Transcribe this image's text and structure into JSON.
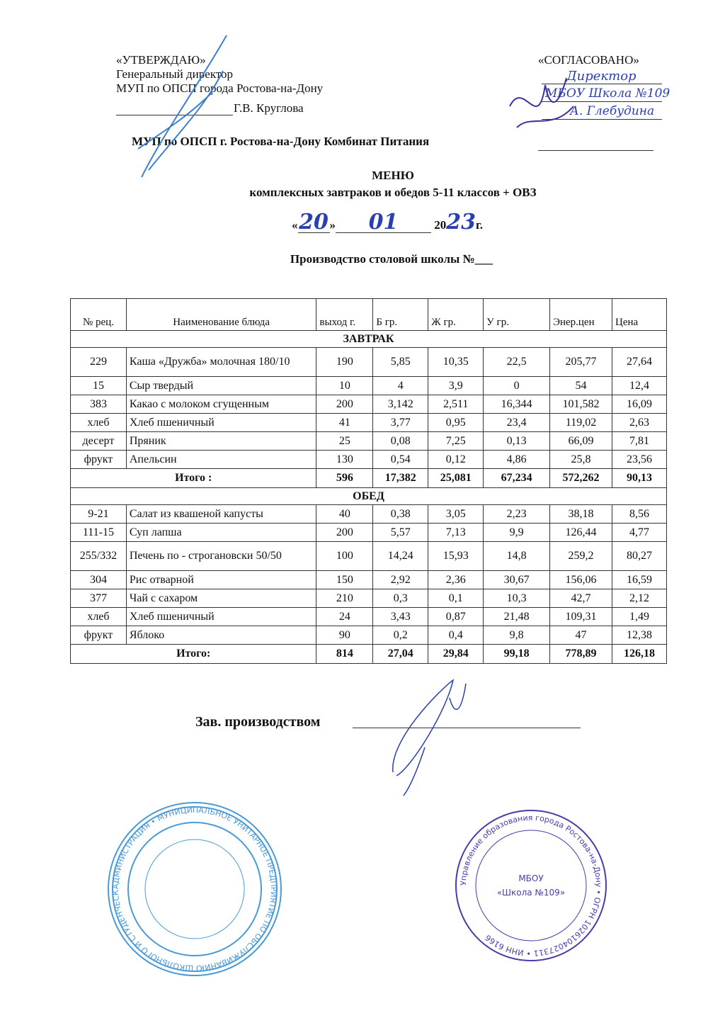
{
  "approve": {
    "title": "«УТВЕРЖДАЮ»",
    "line1": "Генеральный директор",
    "line2": "МУП по ОПСП города Ростова-на-Дону",
    "signer": "Г.В. Круглова"
  },
  "agree": {
    "title": "«СОГЛАСОВАНО»",
    "hand1": "Директор",
    "hand2": "МБОУ Школа №109",
    "hand3": "А. Глебудина"
  },
  "organization": "МУП по ОПСП г. Ростова-на-Дону Комбинат Питания",
  "stamps": {
    "left": {
      "ring": "АДМИНИСТРАЦИЯ • МУНИЦИПАЛЬНОЕ УНИТАРНОЕ ПРЕДПРИЯТИЕ ПО ОБСЛУЖИВАНИЮ ШКОЛЬНОГО И СТУДЕНЧЕСКОГО ПИТАНИЯ • ОГРН 1026103 • РОСТОВА-НА-ДОНУ",
      "color": "#4a9ad8"
    },
    "right": {
      "ring": "Управление образования города Ростова-на-Дону • ОГРН 1026104027311 • ИНН 6166",
      "inner1": "МБОУ",
      "inner2": "«Школа №109»",
      "color": "#4b3aa8"
    }
  },
  "title": "МЕНЮ",
  "subtitle": "комплексных завтраков и обедов 5-11 классов + ОВЗ",
  "date": {
    "open": "«",
    "day": "20",
    "close": "»",
    "month": "01",
    "year_prefix": "20",
    "year": "23",
    "suffix": "г."
  },
  "production": "Производство столовой школы №___",
  "table": {
    "headers": [
      "№ рец.",
      "Наименование блюда",
      "выход г.",
      "Б гр.",
      "Ж гр.",
      "У гр.",
      "Энер.цен",
      "Цена"
    ],
    "sections": [
      {
        "title": "ЗАВТРАК",
        "rows": [
          [
            "229",
            "Каша «Дружба» молочная 180/10",
            "190",
            "5,85",
            "10,35",
            "22,5",
            "205,77",
            "27,64"
          ],
          [
            "15",
            "Сыр твердый",
            "10",
            "4",
            "3,9",
            "0",
            "54",
            "12,4"
          ],
          [
            "383",
            "Какао с молоком сгущенным",
            "200",
            "3,142",
            "2,511",
            "16,344",
            "101,582",
            "16,09"
          ],
          [
            "хлеб",
            "Хлеб пшеничный",
            "41",
            "3,77",
            "0,95",
            "23,4",
            "119,02",
            "2,63"
          ],
          [
            "десерт",
            "Пряник",
            "25",
            "0,08",
            "7,25",
            "0,13",
            "66,09",
            "7,81"
          ],
          [
            "фрукт",
            "Апельсин",
            "130",
            "0,54",
            "0,12",
            "4,86",
            "25,8",
            "23,56"
          ]
        ],
        "total": [
          "Итого :",
          "596",
          "17,382",
          "25,081",
          "67,234",
          "572,262",
          "90,13"
        ]
      },
      {
        "title": "ОБЕД",
        "rows": [
          [
            "9-21",
            "Салат из квашеной капусты",
            "40",
            "0,38",
            "3,05",
            "2,23",
            "38,18",
            "8,56"
          ],
          [
            "111-15",
            "Суп лапша",
            "200",
            "5,57",
            "7,13",
            "9,9",
            "126,44",
            "4,77"
          ],
          [
            "255/332",
            "Печень по - строгановски 50/50",
            "100",
            "14,24",
            "15,93",
            "14,8",
            "259,2",
            "80,27"
          ],
          [
            "304",
            "Рис отварной",
            "150",
            "2,92",
            "2,36",
            "30,67",
            "156,06",
            "16,59"
          ],
          [
            "377",
            "Чай с сахаром",
            "210",
            "0,3",
            "0,1",
            "10,3",
            "42,7",
            "2,12"
          ],
          [
            "хлеб",
            "Хлеб пшеничный",
            "24",
            "3,43",
            "0,87",
            "21,48",
            "109,31",
            "1,49"
          ],
          [
            "фрукт",
            "Яблоко",
            "90",
            "0,2",
            "0,4",
            "9,8",
            "47",
            "12,38"
          ]
        ],
        "total": [
          "Итого:",
          "814",
          "27,04",
          "29,84",
          "99,18",
          "778,89",
          "126,18"
        ]
      }
    ]
  },
  "footer": {
    "label": "Зав. производством"
  }
}
